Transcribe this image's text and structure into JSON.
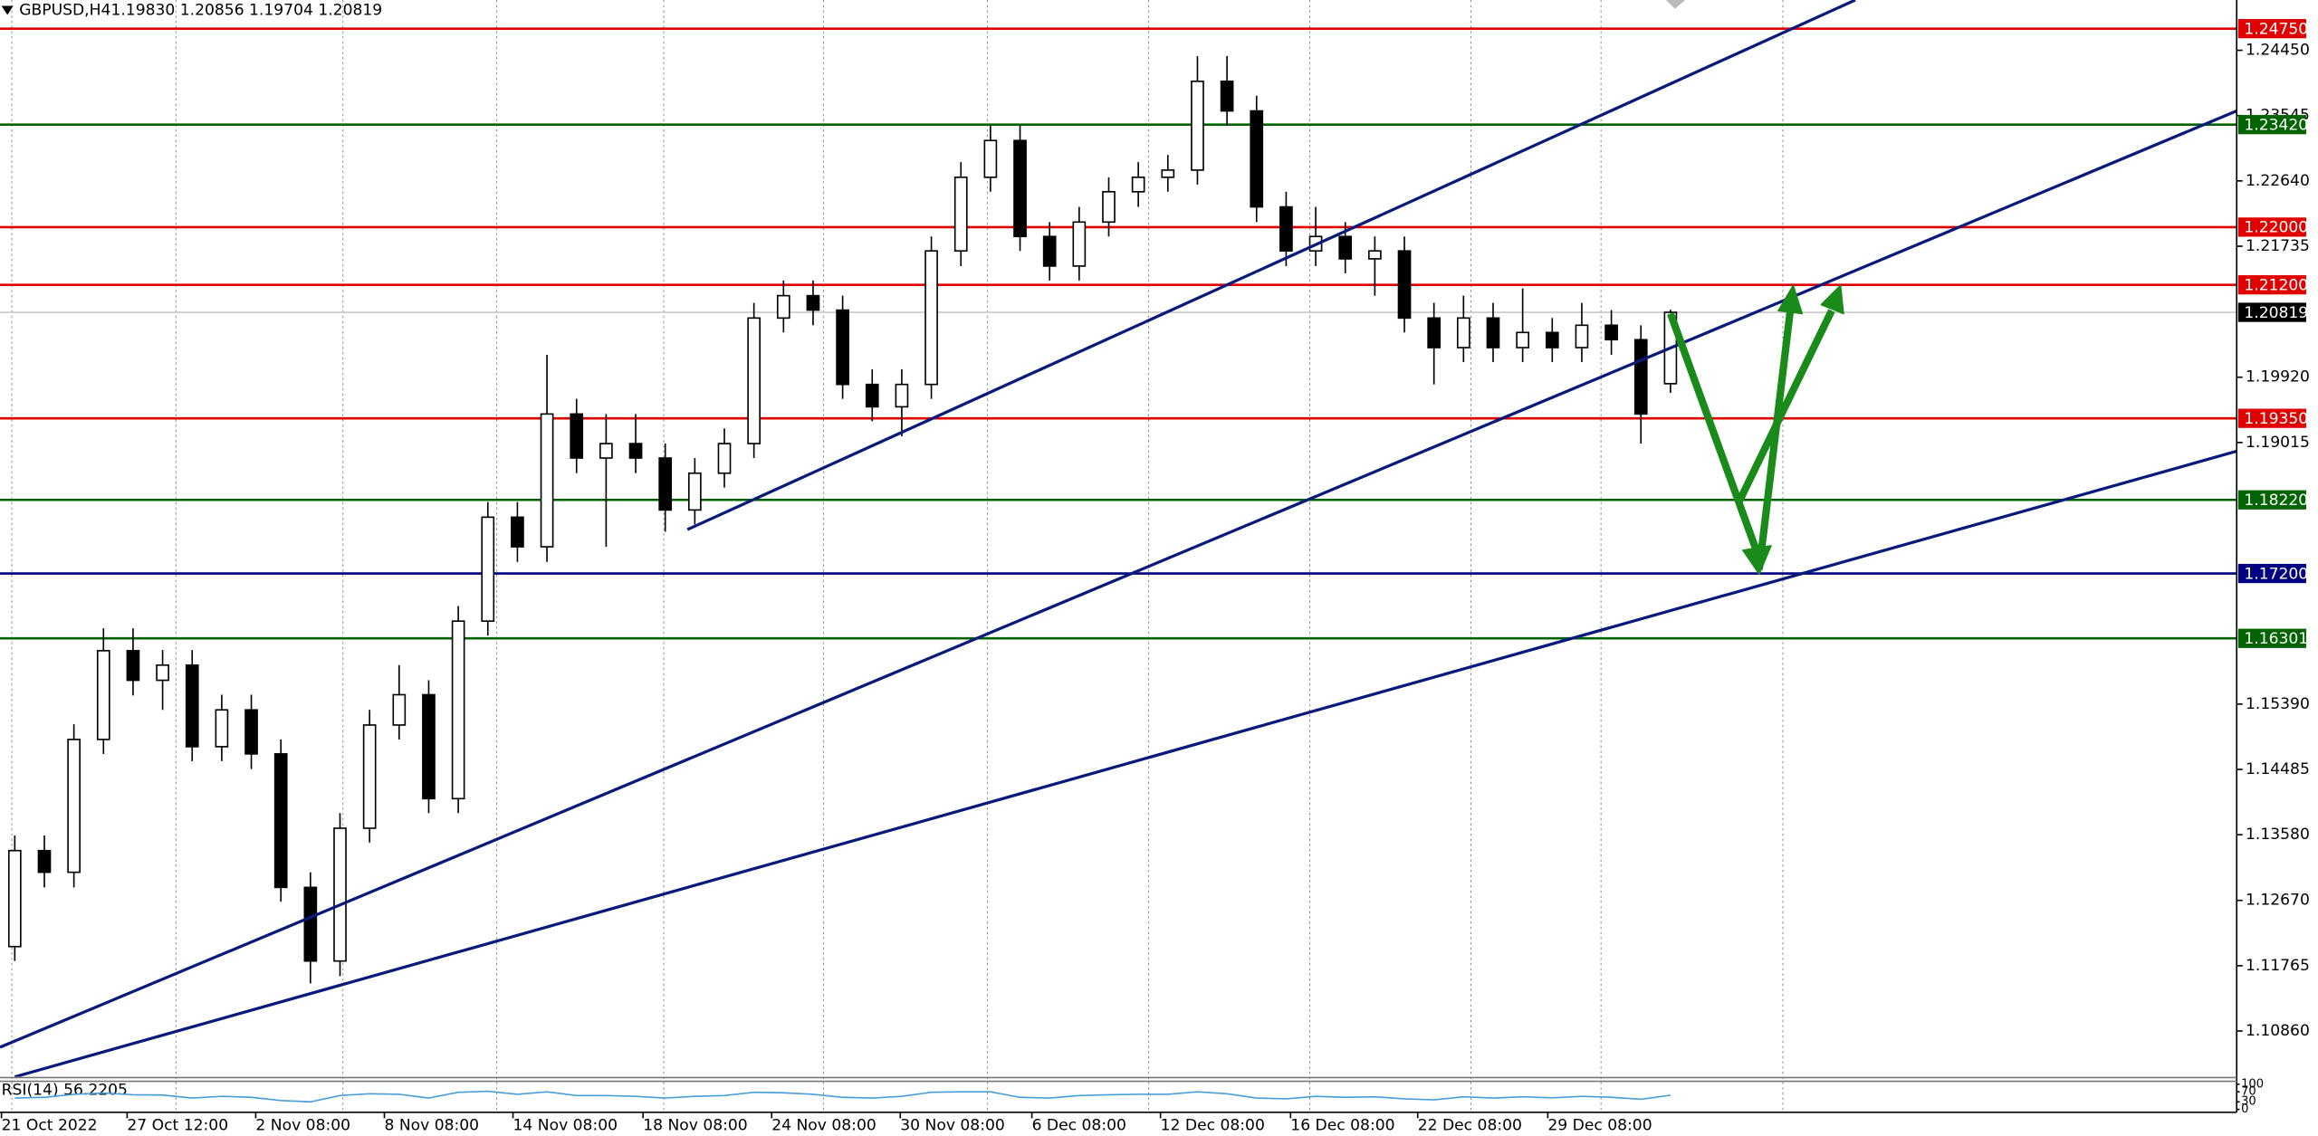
{
  "chart_data": {
    "type": "candlestick",
    "symbol": "GBPUSD,H4",
    "ohlc_text": "1.19830 1.20856 1.19704 1.20819",
    "open": [
      1.1203,
      1.1336,
      1.1306,
      1.149,
      1.1613,
      1.1572,
      1.1593,
      1.148,
      1.1531,
      1.147,
      1.1285,
      1.1183,
      1.1367,
      1.151,
      1.1552,
      1.1408,
      1.1654,
      1.1798,
      1.1757,
      1.1941,
      1.188,
      1.19,
      1.188,
      1.1808,
      1.1859,
      1.19,
      1.2074,
      1.2105,
      1.2085,
      1.1982,
      1.1951,
      1.1982,
      1.2167,
      1.2269,
      1.232,
      1.2187,
      1.2146,
      1.2207,
      1.2249,
      1.2269,
      1.2279,
      1.2402,
      1.2361,
      1.2228,
      1.2167,
      1.2187,
      1.2156,
      1.2167,
      1.2074,
      1.2033,
      1.2074,
      1.2033,
      1.2054,
      1.2033,
      1.2064,
      1.2044,
      1.1983
    ],
    "high": [
      1.1357,
      1.1357,
      1.1511,
      1.1644,
      1.1644,
      1.1614,
      1.1614,
      1.1552,
      1.1552,
      1.149,
      1.1306,
      1.1388,
      1.1531,
      1.1593,
      1.1572,
      1.1675,
      1.1819,
      1.1819,
      1.2023,
      1.1962,
      1.1941,
      1.1941,
      1.19,
      1.188,
      1.1921,
      1.2095,
      1.2126,
      1.2126,
      1.2105,
      1.2003,
      1.2003,
      1.2187,
      1.229,
      1.2341,
      1.2341,
      1.2207,
      1.2228,
      1.2269,
      1.229,
      1.23,
      1.2437,
      1.2437,
      1.2382,
      1.2249,
      1.2228,
      1.2207,
      1.2187,
      1.2187,
      1.2095,
      1.2105,
      1.2095,
      1.2115,
      1.2074,
      1.2095,
      1.2085,
      1.2064,
      1.20856
    ],
    "low": [
      1.1183,
      1.1285,
      1.1285,
      1.147,
      1.1551,
      1.1531,
      1.146,
      1.146,
      1.1449,
      1.1265,
      1.1152,
      1.1162,
      1.1347,
      1.149,
      1.1388,
      1.1388,
      1.1634,
      1.1736,
      1.1736,
      1.1859,
      1.1757,
      1.1859,
      1.1778,
      1.1788,
      1.1839,
      1.188,
      1.2054,
      1.2064,
      1.1962,
      1.1931,
      1.191,
      1.1962,
      1.2146,
      1.2249,
      1.2167,
      1.2126,
      1.2126,
      1.2187,
      1.2228,
      1.2249,
      1.2259,
      1.2341,
      1.2207,
      1.2146,
      1.2146,
      1.2136,
      1.2105,
      1.2054,
      1.1982,
      1.2013,
      1.2013,
      1.2013,
      1.2013,
      1.2013,
      1.2023,
      1.19,
      1.19704
    ],
    "close": [
      1.1336,
      1.1306,
      1.149,
      1.1613,
      1.1572,
      1.1593,
      1.148,
      1.1531,
      1.147,
      1.1285,
      1.1183,
      1.1367,
      1.151,
      1.1552,
      1.1408,
      1.1654,
      1.1798,
      1.1757,
      1.1941,
      1.188,
      1.19,
      1.188,
      1.1808,
      1.1859,
      1.19,
      1.2074,
      1.2105,
      1.2085,
      1.1982,
      1.1951,
      1.1982,
      1.2167,
      1.2269,
      1.232,
      1.2187,
      1.2146,
      1.2207,
      1.2249,
      1.2269,
      1.2279,
      1.2402,
      1.2361,
      1.2228,
      1.2167,
      1.2187,
      1.2156,
      1.2167,
      1.2074,
      1.2033,
      1.2074,
      1.2033,
      1.2054,
      1.2033,
      1.2064,
      1.2044,
      1.1941,
      1.20819
    ],
    "xlim": [
      -0.5,
      75.15
    ],
    "xticks": [
      {
        "value": -0.5,
        "label": "21 Oct 2022"
      },
      {
        "value": 3.75,
        "label": "27 Oct 12:00"
      },
      {
        "value": 8.1,
        "label": "2 Nov 08:00"
      },
      {
        "value": 12.45,
        "label": "8 Nov 08:00"
      },
      {
        "value": 16.8,
        "label": "14 Nov 08:00"
      },
      {
        "value": 21.2,
        "label": "18 Nov 08:00"
      },
      {
        "value": 25.55,
        "label": "24 Nov 08:00"
      },
      {
        "value": 29.9,
        "label": "30 Nov 08:00"
      },
      {
        "value": 34.35,
        "label": "6 Dec 08:00"
      },
      {
        "value": 38.7,
        "label": "12 Dec 08:00"
      },
      {
        "value": 43.1,
        "label": "16 Dec 08:00"
      },
      {
        "value": 47.4,
        "label": "22 Dec 08:00"
      },
      {
        "value": 51.8,
        "label": "29 Dec 08:00"
      }
    ],
    "xgrid": [
      -0.1,
      5.45,
      11.1,
      16.3,
      21.95,
      27.35,
      32.9,
      38.35,
      43.8,
      49.25,
      53.65,
      59.8
    ],
    "ylim": [
      1.10225,
      1.25147
    ],
    "yticks": [
      {
        "value": 1.2445,
        "label": "1.24450"
      },
      {
        "value": 1.23545,
        "label": "1.23545"
      },
      {
        "value": 1.2264,
        "label": "1.22640"
      },
      {
        "value": 1.21735,
        "label": "1.21735"
      },
      {
        "value": 1.1992,
        "label": "1.19920"
      },
      {
        "value": 1.19015,
        "label": "1.19015"
      },
      {
        "value": 1.1539,
        "label": "1.15390"
      },
      {
        "value": 1.14485,
        "label": "1.14485"
      },
      {
        "value": 1.1358,
        "label": "1.13580"
      },
      {
        "value": 1.1267,
        "label": "1.12670"
      },
      {
        "value": 1.11765,
        "label": "1.11765"
      },
      {
        "value": 1.1086,
        "label": "1.10860"
      }
    ],
    "levels": [
      {
        "value": 1.2475,
        "label": "1.24750",
        "color": "#e00000"
      },
      {
        "value": 1.2342,
        "label": "1.23420",
        "color": "#006400"
      },
      {
        "value": 1.22,
        "label": "1.22000",
        "color": "#e00000"
      },
      {
        "value": 1.212,
        "label": "1.21200",
        "color": "#e00000"
      },
      {
        "value": 1.20819,
        "label": "1.20819",
        "color": "#000000"
      },
      {
        "value": 1.1935,
        "label": "1.19350",
        "color": "#e00000"
      },
      {
        "value": 1.1822,
        "label": "1.18220",
        "color": "#006400"
      },
      {
        "value": 1.172,
        "label": "1.17200",
        "color": "#000080"
      },
      {
        "value": 1.16301,
        "label": "1.16301",
        "color": "#006400"
      }
    ],
    "trendline_color": "#0a1a7a",
    "trendlines": [
      {
        "x": [
          -0.5,
          75.15
        ],
        "y": [
          1.10635,
          1.2361
        ]
      },
      {
        "x": [
          22.75,
          62.25
        ],
        "y": [
          1.17809,
          1.25147
        ]
      },
      {
        "x": [
          0,
          75.15
        ],
        "y": [
          1.10225,
          1.18895
        ]
      }
    ],
    "rsi": {
      "label": "RSI(14) 56.2205",
      "color": "#4a9fd8",
      "ylim": [
        0,
        100
      ],
      "yticks": [
        100,
        70,
        30,
        0
      ],
      "values": [
        45,
        48,
        60,
        65,
        58,
        57,
        45,
        52,
        48,
        35,
        30,
        55,
        62,
        60,
        45,
        68,
        72,
        60,
        70,
        55,
        55,
        52,
        45,
        52,
        55,
        68,
        66,
        60,
        48,
        45,
        52,
        68,
        70,
        70,
        48,
        45,
        55,
        58,
        60,
        60,
        70,
        62,
        45,
        42,
        52,
        48,
        50,
        42,
        38,
        50,
        45,
        50,
        46,
        52,
        48,
        40,
        56.2205
      ]
    }
  }
}
